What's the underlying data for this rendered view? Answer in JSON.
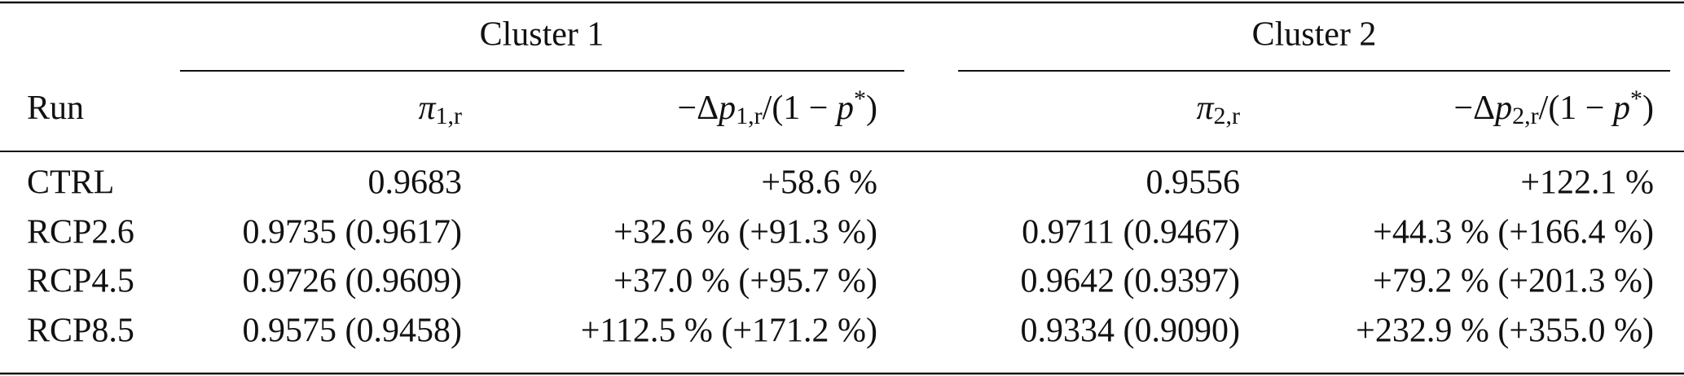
{
  "table": {
    "groups": [
      "Cluster 1",
      "Cluster 2"
    ],
    "columns": [
      [
        {
          "text": "Run"
        }
      ],
      [
        {
          "text": "π",
          "style": "italic"
        },
        {
          "text": "1,r",
          "style": "sub"
        }
      ],
      [
        {
          "text": "−Δ"
        },
        {
          "text": "p",
          "style": "italic"
        },
        {
          "text": "1,r",
          "style": "sub"
        },
        {
          "text": "/(1 − "
        },
        {
          "text": "p",
          "style": "italic"
        },
        {
          "text": "*",
          "style": "sup"
        },
        {
          "text": ")"
        }
      ],
      [
        {
          "text": "π",
          "style": "italic"
        },
        {
          "text": "2,r",
          "style": "sub"
        }
      ],
      [
        {
          "text": "−Δ"
        },
        {
          "text": "p",
          "style": "italic"
        },
        {
          "text": "2,r",
          "style": "sub"
        },
        {
          "text": "/(1 − "
        },
        {
          "text": "p",
          "style": "italic"
        },
        {
          "text": "*",
          "style": "sup"
        },
        {
          "text": ")"
        }
      ]
    ],
    "rows": [
      [
        "CTRL",
        "0.9683",
        "+58.6 %",
        "0.9556",
        "+122.1 %"
      ],
      [
        "RCP2.6",
        "0.9735 (0.9617)",
        "+32.6 % (+91.3 %)",
        "0.9711 (0.9467)",
        "+44.3 % (+166.4 %)"
      ],
      [
        "RCP4.5",
        "0.9726 (0.9609)",
        "+37.0 % (+95.7 %)",
        "0.9642 (0.9397)",
        "+79.2 % (+201.3 %)"
      ],
      [
        "RCP8.5",
        "0.9575 (0.9458)",
        "+112.5 % (+171.2 %)",
        "0.9334 (0.9090)",
        "+232.9 % (+355.0 %)"
      ]
    ]
  }
}
